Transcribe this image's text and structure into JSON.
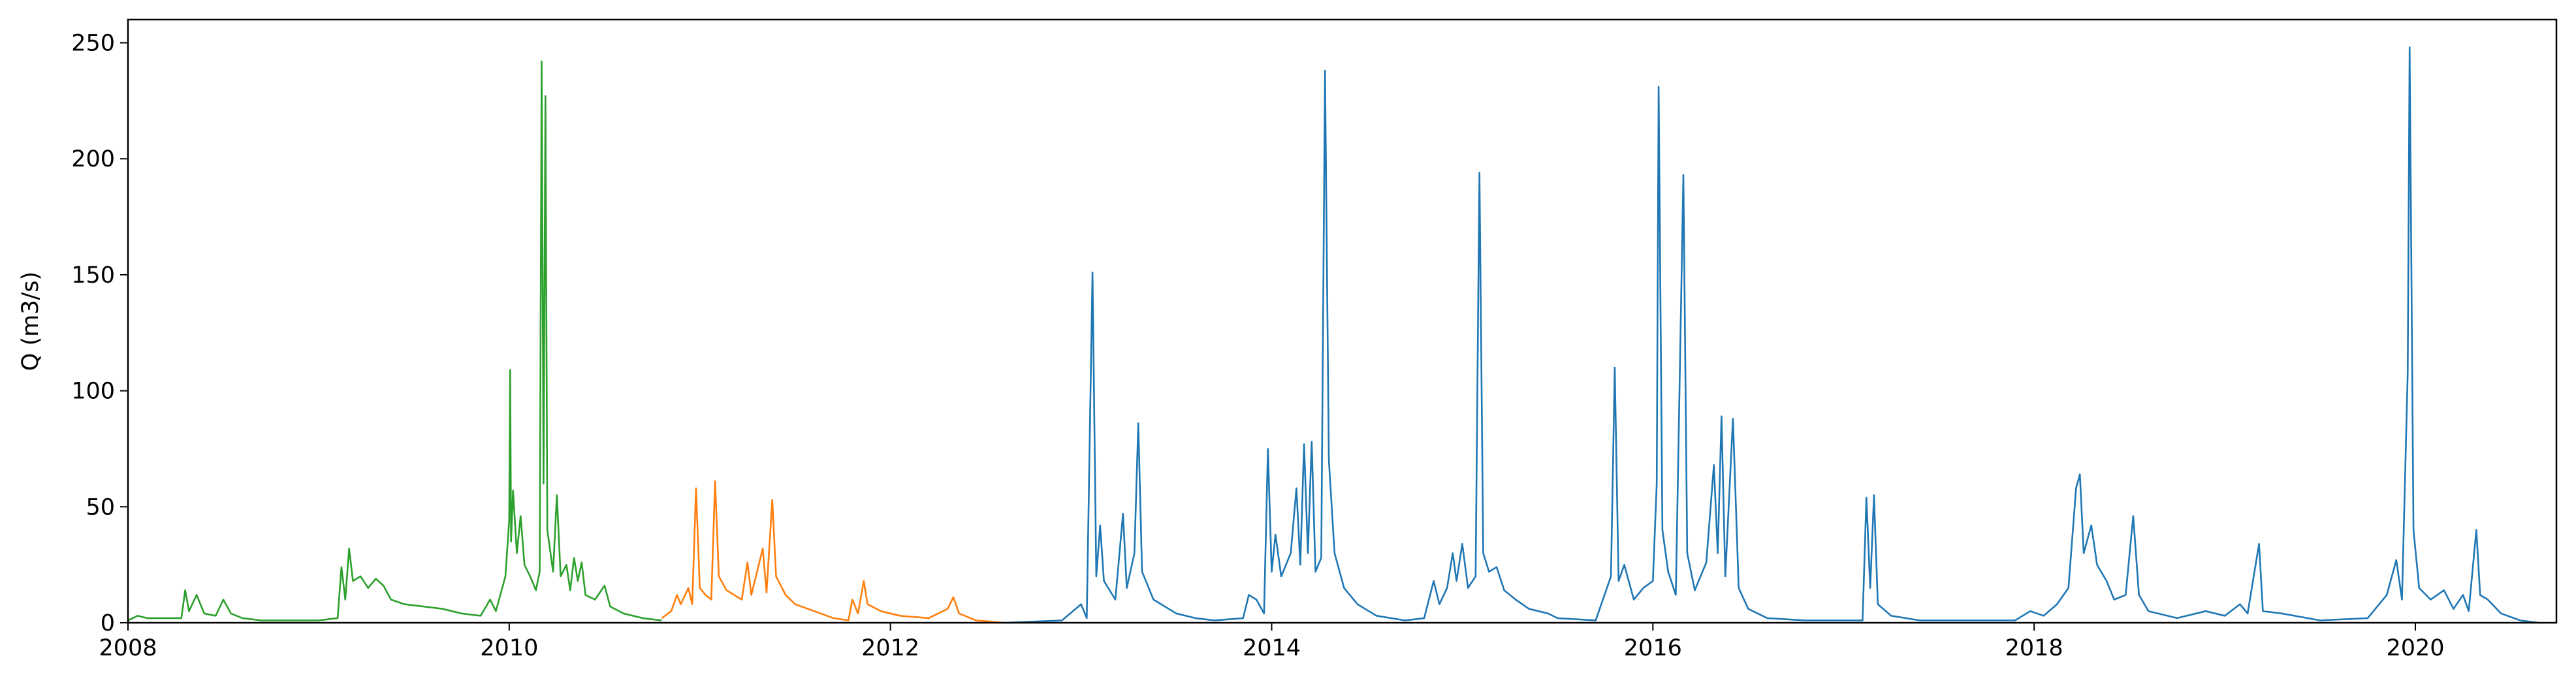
{
  "chart_data": {
    "type": "line",
    "ylabel": "Q (m3/s)",
    "xlim": [
      2008,
      2020.74
    ],
    "xticks": [
      2008,
      2010,
      2012,
      2014,
      2016,
      2018,
      2020
    ],
    "ylim": [
      0,
      260
    ],
    "yticks": [
      0,
      50,
      100,
      150,
      200,
      250
    ],
    "grid": false,
    "series": [
      {
        "color": "#2ca02c",
        "x": [
          2008.0,
          2008.05,
          2008.1,
          2008.2,
          2008.28,
          2008.3,
          2008.32,
          2008.36,
          2008.4,
          2008.46,
          2008.5,
          2008.54,
          2008.6,
          2008.7,
          2008.9,
          2009.0,
          2009.1,
          2009.12,
          2009.14,
          2009.16,
          2009.18,
          2009.22,
          2009.26,
          2009.3,
          2009.34,
          2009.38,
          2009.45,
          2009.55,
          2009.65,
          2009.75,
          2009.85,
          2009.9,
          2009.93,
          2009.96,
          2009.98,
          2010.0,
          2010.005,
          2010.01,
          2010.02,
          2010.04,
          2010.06,
          2010.08,
          2010.11,
          2010.14,
          2010.16,
          2010.17,
          2010.18,
          2010.19,
          2010.2,
          2010.23,
          2010.25,
          2010.27,
          2010.3,
          2010.32,
          2010.34,
          2010.36,
          2010.38,
          2010.4,
          2010.45,
          2010.5,
          2010.53,
          2010.6,
          2010.7,
          2010.8
        ],
        "values": [
          1,
          3,
          2,
          2,
          2,
          14,
          5,
          12,
          4,
          3,
          10,
          4,
          2,
          1,
          1,
          1,
          2,
          24,
          10,
          32,
          18,
          20,
          15,
          19,
          16,
          10,
          8,
          7,
          6,
          4,
          3,
          10,
          5,
          14,
          20,
          44,
          109,
          35,
          57,
          30,
          46,
          25,
          20,
          14,
          22,
          242,
          60,
          227,
          40,
          22,
          55,
          20,
          25,
          14,
          28,
          18,
          26,
          12,
          10,
          16,
          7,
          4,
          2,
          1
        ]
      },
      {
        "color": "#ff7f0e",
        "x": [
          2010.8,
          2010.85,
          2010.88,
          2010.9,
          2010.94,
          2010.96,
          2010.98,
          2011.0,
          2011.03,
          2011.06,
          2011.08,
          2011.1,
          2011.14,
          2011.18,
          2011.22,
          2011.25,
          2011.27,
          2011.33,
          2011.35,
          2011.38,
          2011.4,
          2011.45,
          2011.5,
          2011.6,
          2011.7,
          2011.78,
          2011.8,
          2011.83,
          2011.86,
          2011.88,
          2011.95,
          2012.05,
          2012.2,
          2012.3,
          2012.33,
          2012.36,
          2012.45,
          2012.6
        ],
        "values": [
          2,
          5,
          12,
          8,
          15,
          8,
          58,
          15,
          12,
          10,
          61,
          20,
          14,
          12,
          10,
          26,
          12,
          32,
          13,
          53,
          20,
          12,
          8,
          5,
          2,
          1,
          10,
          4,
          18,
          8,
          5,
          3,
          2,
          6,
          11,
          4,
          1,
          0
        ]
      },
      {
        "color": "#1f77b4",
        "x": [
          2012.6,
          2012.9,
          2013.0,
          2013.03,
          2013.06,
          2013.08,
          2013.1,
          2013.12,
          2013.18,
          2013.22,
          2013.24,
          2013.28,
          2013.3,
          2013.32,
          2013.38,
          2013.5,
          2013.6,
          2013.7,
          2013.85,
          2013.88,
          2013.92,
          2013.96,
          2013.98,
          2014.0,
          2014.02,
          2014.05,
          2014.1,
          2014.13,
          2014.15,
          2014.17,
          2014.19,
          2014.21,
          2014.23,
          2014.26,
          2014.28,
          2014.3,
          2014.33,
          2014.38,
          2014.45,
          2014.55,
          2014.7,
          2014.8,
          2014.85,
          2014.88,
          2014.92,
          2014.95,
          2014.97,
          2015.0,
          2015.03,
          2015.07,
          2015.09,
          2015.11,
          2015.14,
          2015.18,
          2015.22,
          2015.28,
          2015.35,
          2015.45,
          2015.5,
          2015.7,
          2015.78,
          2015.8,
          2015.82,
          2015.85,
          2015.9,
          2015.95,
          2016.0,
          2016.02,
          2016.03,
          2016.05,
          2016.08,
          2016.12,
          2016.16,
          2016.18,
          2016.22,
          2016.28,
          2016.32,
          2016.34,
          2016.36,
          2016.38,
          2016.42,
          2016.45,
          2016.5,
          2016.6,
          2016.8,
          2017.1,
          2017.12,
          2017.14,
          2017.16,
          2017.18,
          2017.25,
          2017.4,
          2017.9,
          2017.98,
          2018.05,
          2018.12,
          2018.18,
          2018.22,
          2018.24,
          2018.26,
          2018.3,
          2018.33,
          2018.38,
          2018.42,
          2018.48,
          2018.52,
          2018.55,
          2018.6,
          2018.75,
          2018.9,
          2019.0,
          2019.08,
          2019.12,
          2019.18,
          2019.2,
          2019.3,
          2019.5,
          2019.75,
          2019.85,
          2019.9,
          2019.93,
          2019.96,
          2019.97,
          2019.99,
          2020.02,
          2020.08,
          2020.15,
          2020.2,
          2020.25,
          2020.28,
          2020.32,
          2020.34,
          2020.38,
          2020.45,
          2020.55,
          2020.65
        ],
        "values": [
          0,
          1,
          8,
          2,
          151,
          20,
          42,
          18,
          10,
          47,
          15,
          30,
          86,
          22,
          10,
          4,
          2,
          1,
          2,
          12,
          10,
          4,
          75,
          22,
          38,
          20,
          30,
          58,
          25,
          77,
          30,
          78,
          22,
          28,
          238,
          70,
          30,
          15,
          8,
          3,
          1,
          2,
          18,
          8,
          15,
          30,
          18,
          34,
          15,
          20,
          194,
          30,
          22,
          24,
          14,
          10,
          6,
          4,
          2,
          1,
          20,
          110,
          18,
          25,
          10,
          15,
          18,
          60,
          231,
          40,
          22,
          12,
          193,
          30,
          14,
          26,
          68,
          30,
          89,
          20,
          88,
          15,
          6,
          2,
          1,
          1,
          54,
          15,
          55,
          8,
          3,
          1,
          1,
          5,
          3,
          8,
          15,
          58,
          64,
          30,
          42,
          25,
          18,
          10,
          12,
          46,
          12,
          5,
          2,
          5,
          3,
          8,
          4,
          34,
          5,
          4,
          1,
          2,
          12,
          27,
          10,
          108,
          248,
          40,
          15,
          10,
          14,
          6,
          12,
          5,
          40,
          12,
          10,
          4,
          1,
          0
        ]
      }
    ]
  }
}
